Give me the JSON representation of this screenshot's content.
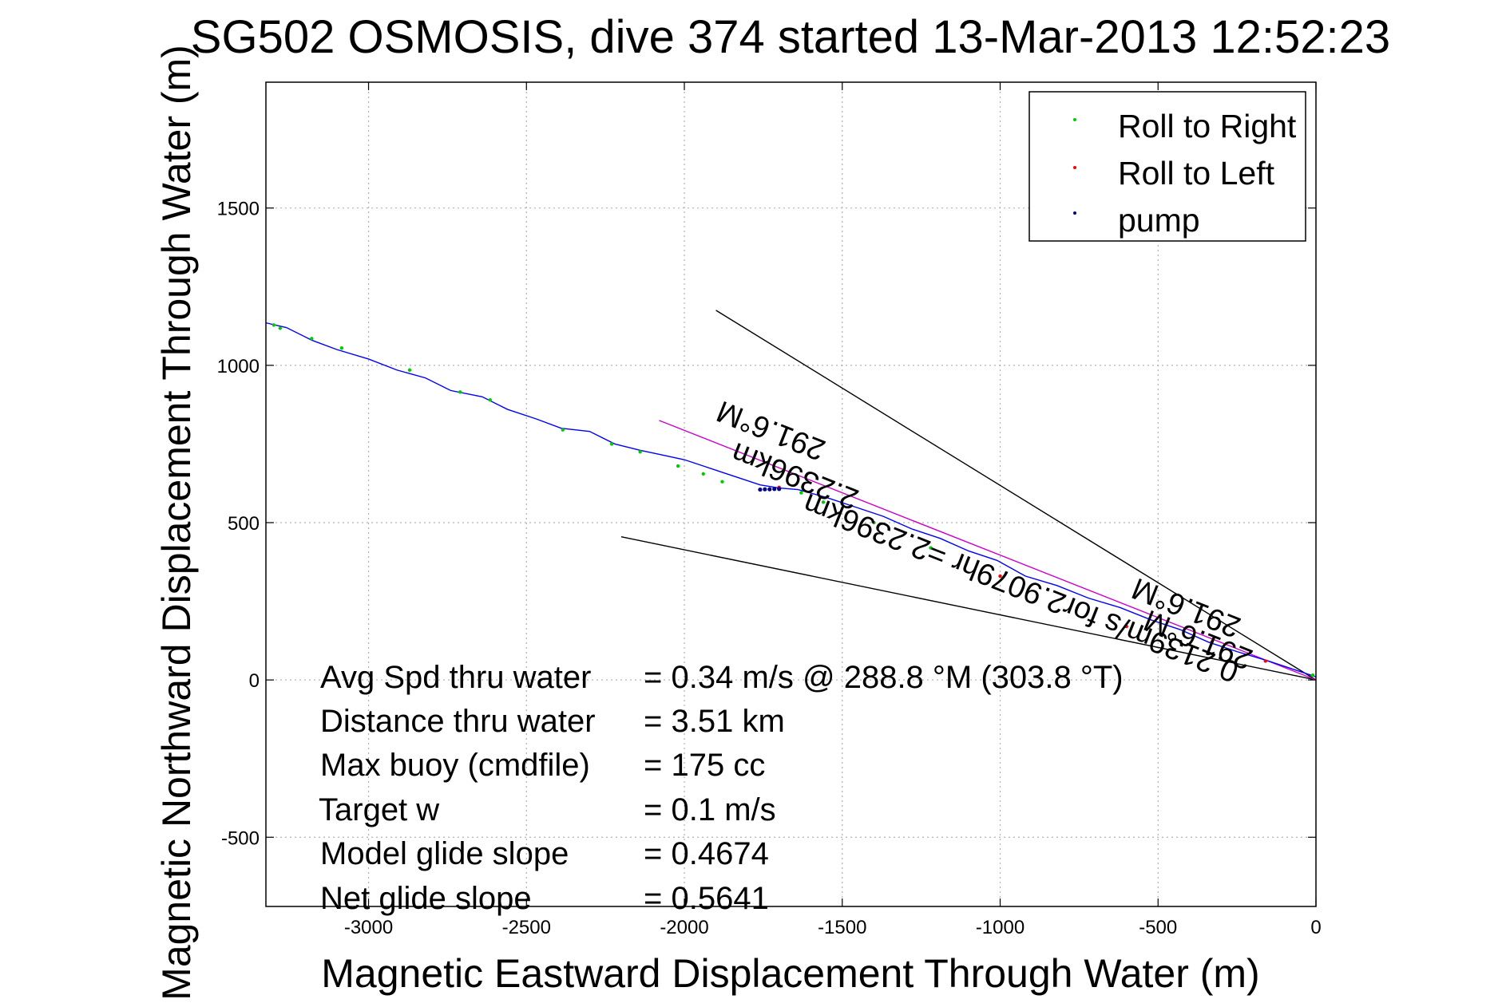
{
  "chart_data": {
    "type": "line",
    "title": "SG502 OSMOSIS, dive 374 started 13-Mar-2013 12:52:23",
    "xlabel": "Magnetic Eastward Displacement Through Water (m)",
    "ylabel": "Magnetic Northward Displacement Through Water (m)",
    "xlim": [
      -3325,
      0
    ],
    "ylim": [
      -720,
      1900
    ],
    "xticks": [
      -3000,
      -2500,
      -2000,
      -1500,
      -1000,
      -500,
      0
    ],
    "yticks": [
      -500,
      0,
      500,
      1000,
      1500
    ],
    "grid": true,
    "legend_position": "top-right",
    "legend": [
      "Roll to Right",
      "Roll to Left",
      "pump"
    ],
    "series": [
      {
        "name": "track",
        "color": "#0000ff",
        "x": [
          0,
          -60,
          -150,
          -250,
          -340,
          -430,
          -520,
          -620,
          -720,
          -820,
          -920,
          -1010,
          -1100,
          -1190,
          -1280,
          -1370,
          -1460,
          -1550,
          -1640,
          -1700,
          -1760,
          -1820,
          -1880,
          -1940,
          -2000,
          -2070,
          -2140,
          -2220,
          -2300,
          -2390,
          -2470,
          -2560,
          -2640,
          -2740,
          -2820,
          -2910,
          -3000,
          -3100,
          -3180,
          -3260,
          -3325
        ],
        "y": [
          10,
          30,
          60,
          90,
          120,
          160,
          190,
          230,
          260,
          300,
          330,
          380,
          410,
          450,
          480,
          520,
          550,
          580,
          605,
          610,
          620,
          640,
          660,
          680,
          700,
          715,
          730,
          750,
          790,
          800,
          830,
          860,
          900,
          920,
          960,
          985,
          1020,
          1050,
          1080,
          1120,
          1135
        ]
      },
      {
        "name": "Roll to Right",
        "color": "#00cc00",
        "x": [
          -3300,
          -3280,
          -3180,
          -3085,
          -2870,
          -2710,
          -2615,
          -2385,
          -2230,
          -2140,
          -2020,
          -1940,
          -1880,
          -1630,
          -1560,
          -1400,
          -1220,
          -10
        ],
        "y": [
          1128,
          1118,
          1085,
          1055,
          985,
          915,
          890,
          795,
          750,
          725,
          680,
          655,
          630,
          595,
          565,
          500,
          420,
          15
        ]
      },
      {
        "name": "Roll to Left",
        "color": "#ff0000",
        "x": [
          -1700,
          -1000,
          -600,
          -330,
          -160
        ],
        "y": [
          612,
          330,
          170,
          120,
          60
        ]
      },
      {
        "name": "pump",
        "color": "#000080",
        "x": [
          -1760,
          -1745,
          -1730,
          -1715,
          -1700
        ],
        "y": [
          605,
          606,
          606,
          607,
          607
        ]
      }
    ],
    "reference_lines": [
      {
        "color": "#000000",
        "x": [
          0,
          -1900
        ],
        "y": [
          0,
          1175
        ]
      },
      {
        "color": "#000000",
        "x": [
          0,
          -2200
        ],
        "y": [
          0,
          455
        ]
      },
      {
        "color": "#cc00cc",
        "x": [
          0,
          -2080
        ],
        "y": [
          0,
          825
        ]
      }
    ],
    "rotated_labels": [
      "291.6°M",
      "2.2396km",
      "291.6°M",
      "0.2139m/s for2.9079hr =2.2396km",
      "291.6°M"
    ],
    "annotations": [
      {
        "label": "Avg Spd thru water",
        "value": "=  0.34 m/s @ 288.8 °M (303.8 °T)"
      },
      {
        "label": "Distance thru water",
        "value": "=  3.51 km"
      },
      {
        "label": "Max buoy (cmdfile)",
        "value": "= 175 cc"
      },
      {
        "label": "Target w",
        "value": "= 0.1 m/s"
      },
      {
        "label": "Model glide slope",
        "value": "= 0.4674"
      },
      {
        "label": "Net glide slope",
        "value": "= 0.5641"
      }
    ]
  }
}
